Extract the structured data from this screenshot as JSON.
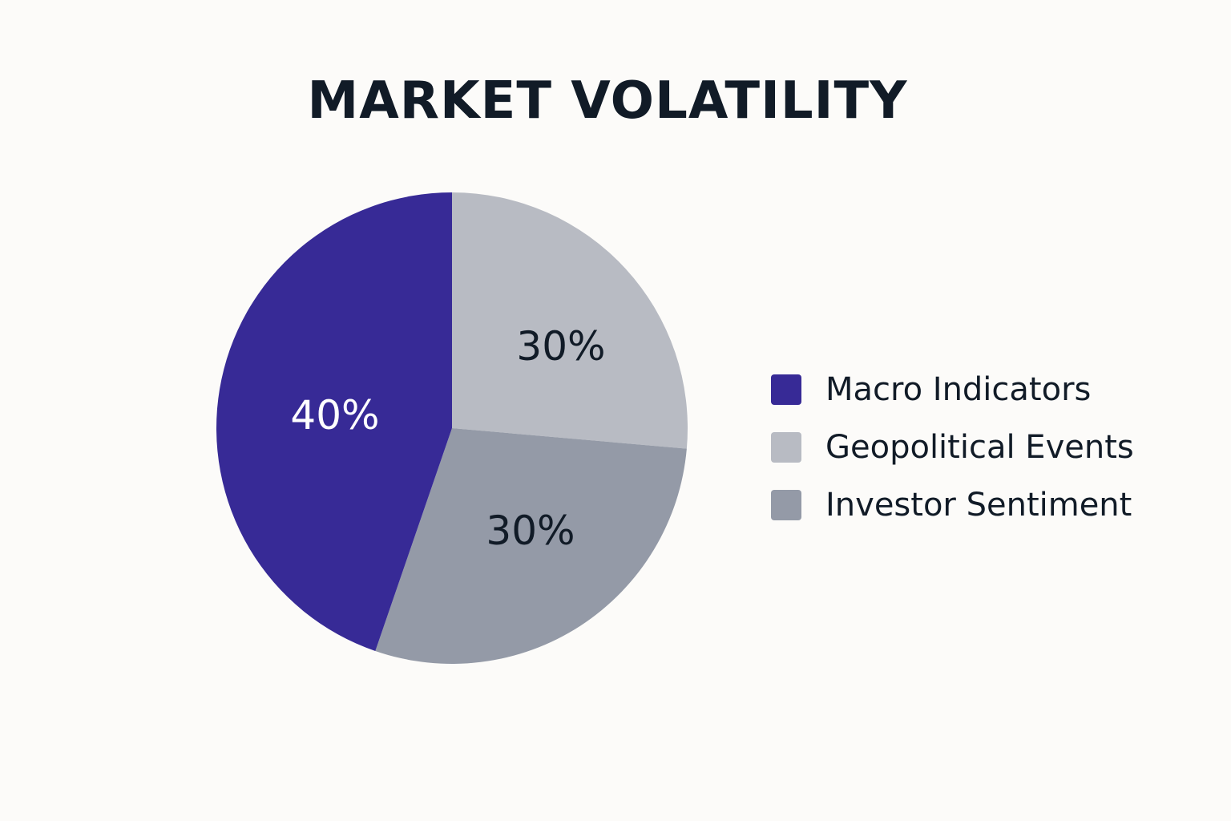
{
  "chart_data": {
    "type": "pie",
    "title": "MARKET VOLATILITY",
    "legend_position": "right",
    "slices": [
      {
        "label": "Macro Indicators",
        "value": 40,
        "display": "40%",
        "color": "#372a96",
        "text_color": "#ffffff"
      },
      {
        "label": "Geopolitical Events",
        "value": 30,
        "display": "30%",
        "color": "#b8bbc3",
        "text_color": "#111b27"
      },
      {
        "label": "Investor Sentiment",
        "value": 30,
        "display": "30%",
        "color": "#949aa7",
        "text_color": "#111b27"
      }
    ]
  }
}
